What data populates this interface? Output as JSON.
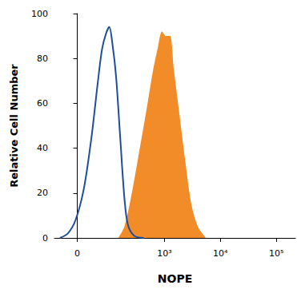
{
  "chart_data": {
    "type": "histogram",
    "x_label": "NOPE",
    "y_label": "Relative Cell Number",
    "xlim": [
      -60,
      220000
    ],
    "xticks": [
      0,
      {
        "value": 1000,
        "label": "10³"
      },
      {
        "value": 10000,
        "label": "10⁴"
      },
      {
        "value": 100000,
        "label": "10⁵"
      }
    ],
    "ylim": [
      0,
      100
    ],
    "yticks": [
      0,
      20,
      40,
      60,
      80,
      100
    ],
    "grid": false,
    "series": [
      {
        "type": "area",
        "color": "#f28c28",
        "x": [
          143,
          187,
          257,
          359,
          496,
          625,
          760,
          900,
          1060,
          1250,
          1470,
          1850,
          2330,
          3020,
          3950,
          5500
        ],
        "values": [
          0,
          5,
          20,
          40,
          60,
          75,
          85,
          92,
          90,
          90,
          75,
          55,
          35,
          15,
          5,
          0
        ]
      },
      {
        "type": "line",
        "color": "#1f4e9c",
        "x": [
          -43,
          -22,
          -4,
          15,
          34,
          51,
          66,
          81,
          95,
          111,
          130,
          156,
          187,
          217,
          283,
          422
        ],
        "values": [
          0,
          2,
          8,
          22,
          45,
          68,
          84,
          91,
          94,
          86,
          72,
          45,
          18,
          6,
          1,
          0
        ]
      }
    ]
  }
}
